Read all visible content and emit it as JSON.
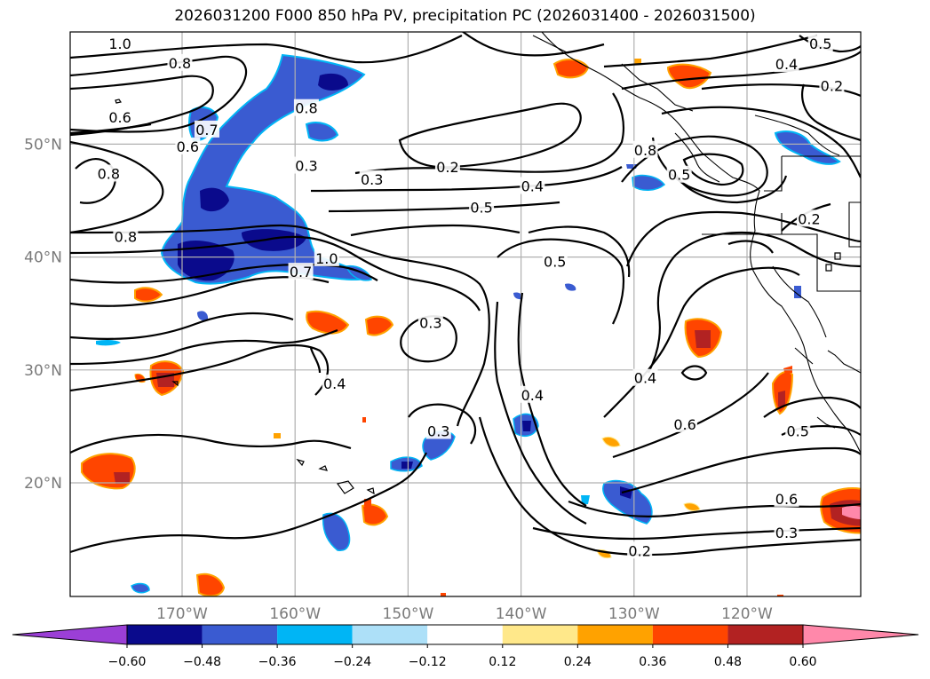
{
  "title": "2026031200 F000 850 hPa PV, precipitation PC (2026031400 - 2026031500)",
  "longitudes": {
    "values": [
      -170,
      -160,
      -150,
      -140,
      -130,
      -120
    ],
    "labels": [
      "170°W",
      "160°W",
      "150°W",
      "140°W",
      "130°W",
      "120°W"
    ]
  },
  "latitudes": {
    "values": [
      20,
      30,
      40,
      50
    ],
    "labels": [
      "20°N",
      "30°N",
      "40°N",
      "50°N"
    ]
  },
  "colorbar": {
    "labels": [
      "−0.60",
      "−0.48",
      "−0.36",
      "−0.24",
      "−0.12",
      "0.12",
      "0.24",
      "0.36",
      "0.48",
      "0.60"
    ],
    "colors": [
      "#9b3fd6",
      "#0a0a8c",
      "#3a5bd1",
      "#00b5f5",
      "#ade0f8",
      "#ffffff",
      "#ffe88a",
      "#ffa200",
      "#ff4500",
      "#b22222",
      "#ff88aa"
    ]
  },
  "contour_labels": [
    {
      "text": "1.0",
      "lon": -175.5,
      "lat": 58.9
    },
    {
      "text": "0.8",
      "lon": -170.2,
      "lat": 57.2
    },
    {
      "text": "0.6",
      "lon": -175.5,
      "lat": 52.4
    },
    {
      "text": "0.8",
      "lon": -176.5,
      "lat": 47.4
    },
    {
      "text": "0.6",
      "lon": -169.5,
      "lat": 49.8
    },
    {
      "text": "0.7",
      "lon": -167.8,
      "lat": 51.3
    },
    {
      "text": "0.8",
      "lon": -159.0,
      "lat": 53.2
    },
    {
      "text": "0.3",
      "lon": -159.0,
      "lat": 48.1
    },
    {
      "text": "0.8",
      "lon": -175.0,
      "lat": 41.8
    },
    {
      "text": "1.0",
      "lon": -157.2,
      "lat": 39.9
    },
    {
      "text": "0.7",
      "lon": -159.5,
      "lat": 38.7
    },
    {
      "text": "0.3",
      "lon": -153.2,
      "lat": 46.9
    },
    {
      "text": "0.2",
      "lon": -146.5,
      "lat": 48.0
    },
    {
      "text": "0.4",
      "lon": -139.0,
      "lat": 46.3
    },
    {
      "text": "0.5",
      "lon": -143.5,
      "lat": 44.4
    },
    {
      "text": "0.5",
      "lon": -137.0,
      "lat": 39.6
    },
    {
      "text": "0.3",
      "lon": -148.0,
      "lat": 34.2
    },
    {
      "text": "0.4",
      "lon": -156.5,
      "lat": 28.8
    },
    {
      "text": "0.3",
      "lon": -147.3,
      "lat": 24.6
    },
    {
      "text": "0.4",
      "lon": -139.0,
      "lat": 27.8
    },
    {
      "text": "0.4",
      "lon": -129.0,
      "lat": 29.3
    },
    {
      "text": "0.6",
      "lon": -125.5,
      "lat": 25.2
    },
    {
      "text": "0.5",
      "lon": -126.0,
      "lat": 47.3
    },
    {
      "text": "0.5",
      "lon": -113.5,
      "lat": 58.9
    },
    {
      "text": "0.4",
      "lon": -116.5,
      "lat": 57.1
    },
    {
      "text": "0.2",
      "lon": -112.5,
      "lat": 55.2
    },
    {
      "text": "0.2",
      "lon": -114.5,
      "lat": 43.4
    },
    {
      "text": "0.5",
      "lon": -115.5,
      "lat": 24.6
    },
    {
      "text": "0.6",
      "lon": -116.5,
      "lat": 18.6
    },
    {
      "text": "0.3",
      "lon": -116.5,
      "lat": 15.6
    },
    {
      "text": "0.2",
      "lon": -129.5,
      "lat": 14.0
    },
    {
      "text": "0.8",
      "lon": -129.0,
      "lat": 49.5
    }
  ]
}
